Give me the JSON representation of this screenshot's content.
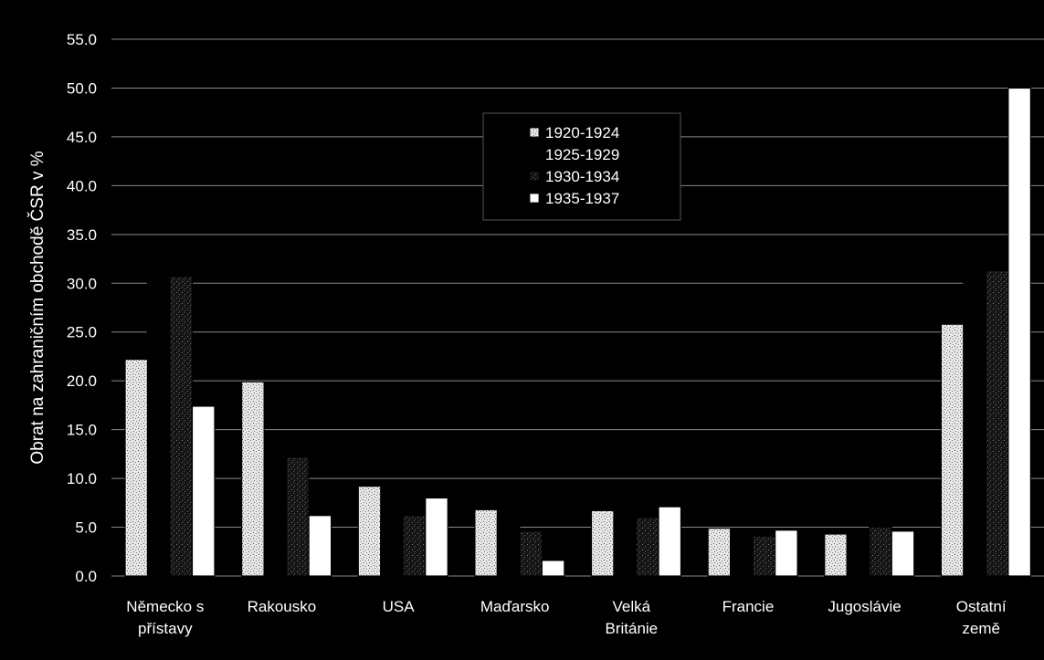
{
  "colors": {
    "background": "#000000",
    "plot_area": "#000000",
    "gridline": "#8a8a8a",
    "axis_text": "#ffffff",
    "legend_bg": "#000000",
    "legend_text": "#ffffff"
  },
  "chart_data": {
    "type": "bar",
    "title": "",
    "xlabel": "",
    "ylabel": "Obrat na zahraničním obchodě ČSR v %",
    "ylim": [
      0,
      55
    ],
    "ytick_step": 5,
    "ytick_labels": [
      "0.0",
      "5.0",
      "10.0",
      "15.0",
      "20.0",
      "25.0",
      "30.0",
      "35.0",
      "40.0",
      "45.0",
      "50.0",
      "55.0"
    ],
    "grid": true,
    "legend_position": "top-center",
    "categories": [
      [
        "Německo s",
        "přístavy"
      ],
      [
        "Rakousko"
      ],
      [
        "USA"
      ],
      [
        "Maďarsko"
      ],
      [
        "Velká",
        "Británie"
      ],
      [
        "Francie"
      ],
      [
        "Jugoslávie"
      ],
      [
        "Ostatní",
        "země"
      ]
    ],
    "series": [
      {
        "name": "1920-1924",
        "color": "#c8c8c8",
        "pattern": "speckle",
        "values": [
          22.2,
          19.9,
          9.2,
          6.8,
          6.7,
          4.9,
          4.3,
          25.8
        ]
      },
      {
        "name": "1925-1929",
        "color": "#000000",
        "pattern": "solid",
        "values": [
          31.0,
          12.0,
          5.7,
          6.1,
          6.0,
          2.8,
          4.0,
          32.6
        ]
      },
      {
        "name": "1930-1934",
        "color": "#2a2a2a",
        "pattern": "dark-speckle",
        "values": [
          30.7,
          12.2,
          6.2,
          4.6,
          6.0,
          4.1,
          5.0,
          31.3
        ]
      },
      {
        "name": "1935-1937",
        "color": "#ffffff",
        "pattern": "solid",
        "values": [
          17.4,
          6.2,
          8.0,
          1.6,
          7.1,
          4.7,
          4.6,
          50.0
        ]
      }
    ]
  }
}
